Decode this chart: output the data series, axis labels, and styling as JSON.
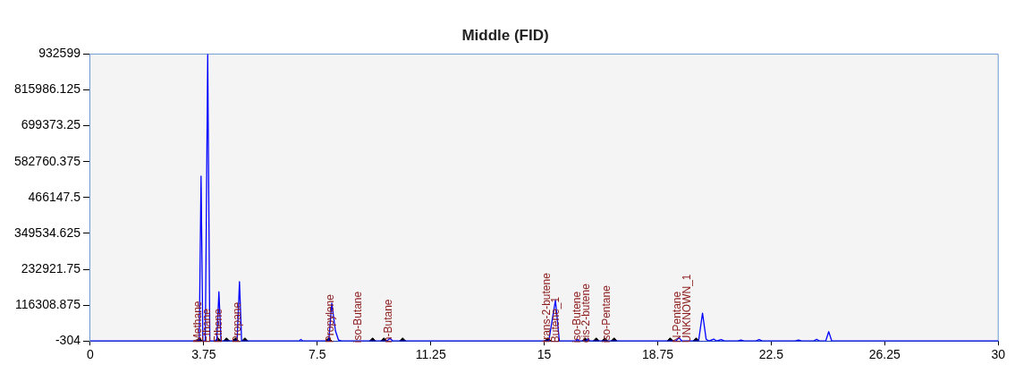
{
  "chart_data": {
    "type": "line",
    "title": "Middle (FID)",
    "xlim": [
      0,
      30
    ],
    "xticks": [
      0,
      3.75,
      7.5,
      11.25,
      15,
      18.75,
      22.5,
      26.25,
      30
    ],
    "ylim": [
      -304,
      932599
    ],
    "yticks": [
      -304,
      116308.875,
      232921.75,
      349534.625,
      466147.5,
      582760.375,
      699373.25,
      815986.125,
      932599
    ],
    "grid": false,
    "legend": false,
    "marker": "none",
    "line_style": "solid",
    "series": [
      {
        "color": "#0000ff",
        "x": [
          0,
          3.5,
          3.6,
          3.66,
          3.72,
          3.8,
          3.88,
          3.95,
          4.18,
          4.25,
          4.32,
          4.85,
          4.93,
          5.0,
          6.9,
          6.96,
          7.02,
          7.88,
          7.98,
          8.1,
          8.2,
          8.3,
          9.8,
          9.9,
          10.0,
          15.15,
          15.37,
          15.5,
          16.05,
          16.1,
          16.15,
          16.4,
          16.45,
          16.5,
          19.35,
          19.45,
          19.55,
          20.1,
          20.23,
          20.35,
          20.45,
          20.6,
          20.7,
          20.85,
          20.95,
          21.4,
          21.5,
          21.6,
          22.0,
          22.1,
          22.2,
          23.3,
          23.4,
          23.5,
          23.9,
          24.0,
          24.1,
          24.3,
          24.4,
          24.5,
          30
        ],
        "values": [
          -304,
          -304,
          -304,
          535600,
          -304,
          -304,
          932599,
          -304,
          -304,
          159500,
          -304,
          -304,
          192600,
          -304,
          -304,
          5000,
          -304,
          -304,
          123000,
          33000,
          3000,
          -304,
          -304,
          8000,
          -304,
          -304,
          132000,
          -304,
          -304,
          5000,
          -304,
          -304,
          8000,
          -304,
          -304,
          10000,
          -304,
          -304,
          90000,
          5000,
          -304,
          6000,
          -304,
          4000,
          -304,
          -304,
          3000,
          -304,
          -304,
          4000,
          -304,
          -304,
          3000,
          -304,
          -304,
          5000,
          -304,
          -304,
          30000,
          -304,
          -304
        ]
      },
      {
        "type": "scatter",
        "color": "#000000",
        "marker": "diamond",
        "x": [
          3.6,
          4.22,
          4.5,
          4.8,
          5.11,
          7.88,
          9.33,
          9.7,
          10.32,
          15.12,
          16.35,
          16.72,
          17.0,
          17.31,
          19.16,
          20.02
        ],
        "values": [
          -304,
          -304,
          -304,
          -304,
          -304,
          -304,
          -304,
          -304,
          -304,
          -304,
          -304,
          -304,
          -304,
          -304,
          -304,
          -304
        ]
      }
    ],
    "annotations": [
      {
        "text": "Methane",
        "x": 3.57,
        "y": -304
      },
      {
        "text": "Ethane",
        "x": 3.85,
        "y": -304
      },
      {
        "text": "Ethene",
        "x": 4.25,
        "y": -304
      },
      {
        "text": "Propane",
        "x": 4.87,
        "y": -304
      },
      {
        "text": "Propylene",
        "x": 7.95,
        "y": -304
      },
      {
        "text": "iso-Butane",
        "x": 8.87,
        "y": -304
      },
      {
        "text": "n-Butane",
        "x": 9.86,
        "y": -304
      },
      {
        "text": "trans-2-butene",
        "x": 15.09,
        "y": -304
      },
      {
        "text": "Butene_1",
        "x": 15.4,
        "y": -304
      },
      {
        "text": "iso-Butene",
        "x": 16.1,
        "y": -304
      },
      {
        "text": "cis-2-butene",
        "x": 16.4,
        "y": -304
      },
      {
        "text": "iso-Pentane",
        "x": 17.06,
        "y": -304
      },
      {
        "text": "N-Pentane",
        "x": 19.4,
        "y": -304
      },
      {
        "text": "UNKNOWN_1",
        "x": 19.74,
        "y": -304
      }
    ]
  }
}
